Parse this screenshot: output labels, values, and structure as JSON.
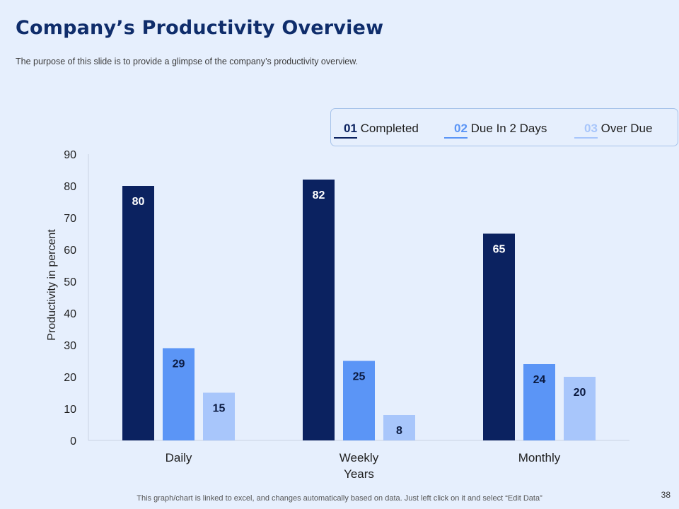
{
  "slide": {
    "title": "Company’s Productivity Overview",
    "subtitle": "The purpose of this slide is to provide a glimpse of the company’s productivity overview.",
    "footer": "This graph/chart is linked to excel,  and changes automatically based on data. Just left click on it and select “Edit Data”",
    "page_number": "38"
  },
  "legend": [
    {
      "num": "01",
      "label": "Completed",
      "color": "#0b2260"
    },
    {
      "num": "02",
      "label": "Due In 2 Days",
      "color": "#5b95f6"
    },
    {
      "num": "03",
      "label": "Over Due",
      "color": "#a8c6fb"
    }
  ],
  "chart_data": {
    "type": "bar",
    "categories": [
      "Daily",
      "Weekly",
      "Monthly"
    ],
    "series": [
      {
        "name": "Completed",
        "values": [
          80,
          82,
          65
        ],
        "color": "#0b2260",
        "label_color": "#ffffff"
      },
      {
        "name": "Due In 2 Days",
        "values": [
          29,
          25,
          24
        ],
        "color": "#5b95f6",
        "label_color": "#0b1a40"
      },
      {
        "name": "Over Due",
        "values": [
          15,
          8,
          20
        ],
        "color": "#a8c6fb",
        "label_color": "#0b1a40"
      }
    ],
    "title": "",
    "xlabel": "Years",
    "ylabel": "Productivity in percent",
    "ylim": [
      0,
      90
    ],
    "yticks": [
      "0",
      "10",
      "20",
      "30",
      "40",
      "50",
      "60",
      "70",
      "80",
      "90"
    ],
    "grid": false
  }
}
